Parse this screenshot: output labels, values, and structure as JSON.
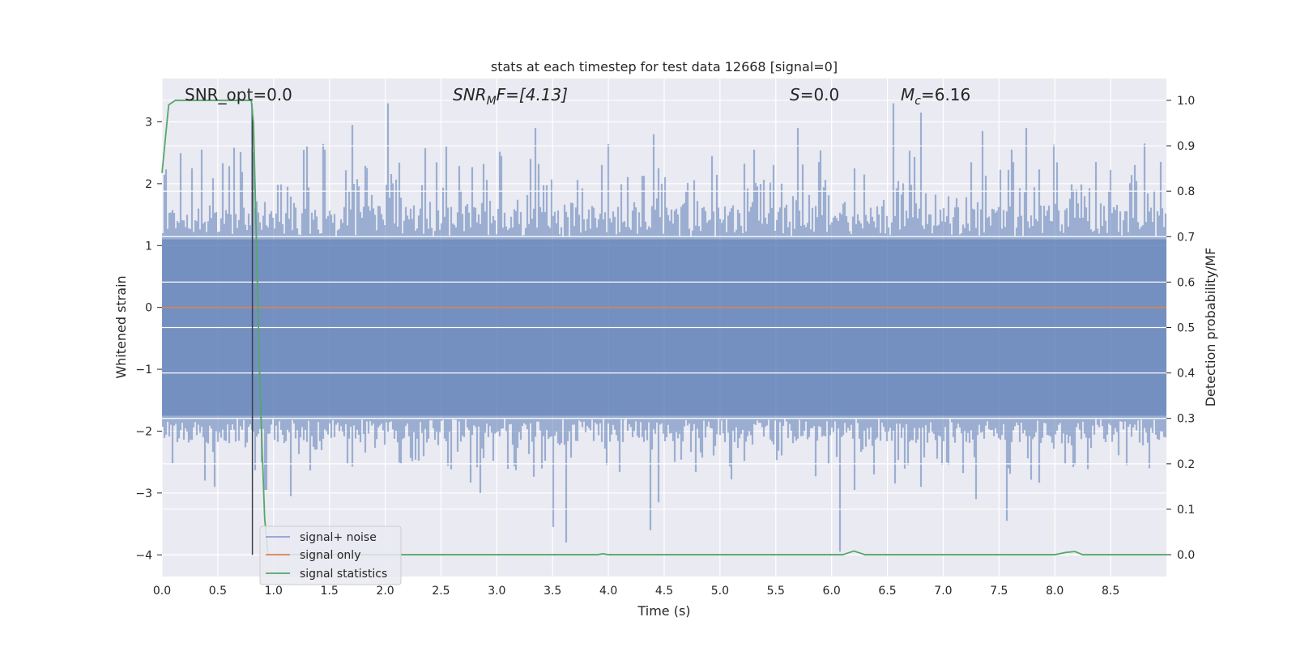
{
  "chart_data": {
    "type": "line",
    "title": "stats at each timestep for test data 12668 [signal=0]",
    "xlabel": "Time (s)",
    "ylabel_left": "Whitened strain",
    "ylabel_right": "Detection probability/MF",
    "xlim": [
      0.0,
      9.0
    ],
    "ylim_left": [
      -4.35,
      3.7
    ],
    "ylim_right": [
      -0.048,
      1.048
    ],
    "x_ticks": [
      "0.0",
      "0.5",
      "1.0",
      "1.5",
      "2.0",
      "2.5",
      "3.0",
      "3.5",
      "4.0",
      "4.5",
      "5.0",
      "5.5",
      "6.0",
      "6.5",
      "7.0",
      "7.5",
      "8.0",
      "8.5"
    ],
    "y_ticks_left": [
      "3",
      "2",
      "1",
      "0",
      "−1",
      "−2",
      "−3",
      "−4"
    ],
    "y_ticks_right": [
      "1.0",
      "0.9",
      "0.8",
      "0.7",
      "0.6",
      "0.5",
      "0.4",
      "0.3",
      "0.2",
      "0.1",
      "0.0"
    ],
    "grid": true,
    "legend_position": "bottom-left",
    "colors": {
      "background": "#eaeaf2",
      "signal_noise": "#4c72b0",
      "signal_only": "#dd8452",
      "signal_statistics": "#55a868",
      "marker": "#404040"
    },
    "annotations": {
      "snr_opt": {
        "label": "SNR_opt=0.0"
      },
      "snr_mf": {
        "label": "SNR",
        "subscript": "M",
        "suffix": "F=[4.13]"
      },
      "s": {
        "label": "S",
        "suffix": "=0.0"
      },
      "mc": {
        "label": "M",
        "subscript": "c",
        "suffix": "=6.16"
      }
    },
    "marker_line": {
      "x": 0.81,
      "y_range": [
        -4.0,
        3.2
      ]
    },
    "series": [
      {
        "name": "signal+ noise",
        "axis": "left",
        "description_stats": {
          "typical_band": [
            -1.8,
            1.15
          ],
          "max": 3.3,
          "min": -3.95
        },
        "peaks": [
          [
            0.8,
            3.3
          ],
          [
            2.03,
            3.35
          ],
          [
            1.7,
            2.95
          ],
          [
            3.35,
            2.9
          ],
          [
            4.4,
            2.8
          ],
          [
            5.7,
            2.9
          ],
          [
            6.55,
            3.3
          ],
          [
            6.8,
            3.15
          ],
          [
            7.35,
            2.85
          ],
          [
            7.75,
            2.9
          ],
          [
            8.8,
            2.65
          ],
          [
            5.3,
            2.55
          ],
          [
            2.55,
            2.6
          ],
          [
            1.3,
            2.6
          ],
          [
            0.35,
            2.55
          ]
        ],
        "troughs": [
          [
            0.47,
            -2.9
          ],
          [
            0.93,
            -2.95
          ],
          [
            1.15,
            -3.05
          ],
          [
            2.85,
            -3.0
          ],
          [
            3.5,
            -3.55
          ],
          [
            3.62,
            -3.8
          ],
          [
            4.38,
            -3.6
          ],
          [
            4.45,
            -3.15
          ],
          [
            6.08,
            -3.95
          ],
          [
            6.2,
            -2.95
          ],
          [
            6.8,
            -2.9
          ],
          [
            7.3,
            -3.1
          ],
          [
            7.57,
            -3.45
          ],
          [
            8.65,
            -2.55
          ],
          [
            8.85,
            -2.6
          ]
        ]
      },
      {
        "name": "signal only",
        "axis": "left",
        "x": [
          0.0,
          9.0
        ],
        "y": [
          0.0,
          0.0
        ]
      },
      {
        "name": "signal statistics",
        "axis": "right",
        "x": [
          0.0,
          0.06,
          0.12,
          0.2,
          0.5,
          0.8,
          0.82,
          0.85,
          0.88,
          0.92,
          0.95,
          1.0,
          2.0,
          3.0,
          3.9,
          3.95,
          4.0,
          5.0,
          6.0,
          6.1,
          6.15,
          6.2,
          6.25,
          6.3,
          7.0,
          8.0,
          8.1,
          8.18,
          8.25,
          8.5,
          9.0
        ],
        "y": [
          0.84,
          0.99,
          1.0,
          1.0,
          1.0,
          1.0,
          0.95,
          0.65,
          0.35,
          0.08,
          0.0,
          0.0,
          0.0,
          0.0,
          0.0,
          0.002,
          0.0,
          0.0,
          0.0,
          0.0,
          0.004,
          0.008,
          0.004,
          0.0,
          0.0,
          0.0,
          0.005,
          0.007,
          0.0,
          0.0,
          0.0
        ]
      }
    ]
  }
}
